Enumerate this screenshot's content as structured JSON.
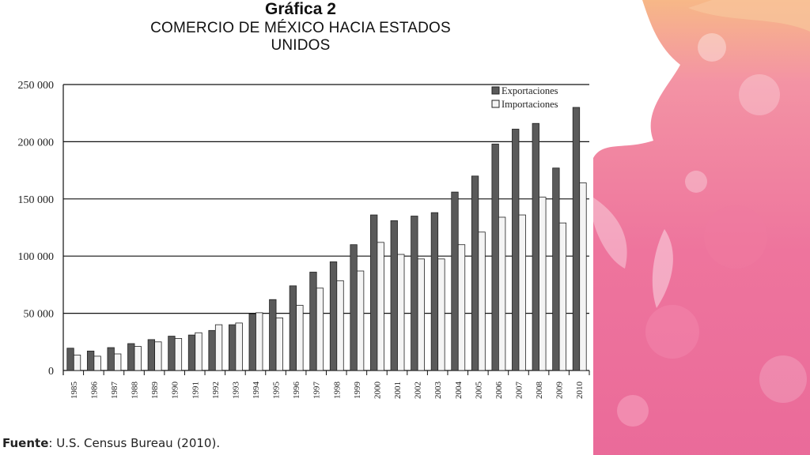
{
  "header": {
    "title": "Gráfica 2",
    "subtitle": "COMERCIO DE MÉXICO HACIA ESTADOS UNIDOS"
  },
  "footer": {
    "source_label": "Fuente",
    "source_text": ": U.S. Census Bureau (2010)."
  },
  "colors": {
    "exports": "#5a5a5a",
    "imports": "#f4f4f4",
    "decor_pink": "#ec5f8c",
    "decor_orange": "#f4a574"
  },
  "chart_data": {
    "type": "bar",
    "title": "",
    "xlabel": "",
    "ylabel": "",
    "ylim": [
      0,
      250000
    ],
    "yticks": [
      0,
      50000,
      100000,
      150000,
      200000,
      250000
    ],
    "ytick_labels": [
      "0",
      "50 000",
      "100 000",
      "150 000",
      "200 000",
      "250 000"
    ],
    "grid": "horizontal",
    "legend_position": "top-right",
    "categories": [
      "1985",
      "1986",
      "1987",
      "1988",
      "1989",
      "1990",
      "1991",
      "1992",
      "1993",
      "1994",
      "1995",
      "1996",
      "1997",
      "1998",
      "1999",
      "2000",
      "2001",
      "2002",
      "2003",
      "2004",
      "2005",
      "2006",
      "2007",
      "2008",
      "2009",
      "2010"
    ],
    "series": [
      {
        "name": "Exportaciones",
        "values": [
          19500,
          17000,
          20000,
          23500,
          27000,
          30000,
          31000,
          35000,
          40000,
          49500,
          62000,
          74000,
          86000,
          95000,
          110000,
          136000,
          131000,
          135000,
          138000,
          156000,
          170000,
          198000,
          211000,
          216000,
          177000,
          230000
        ]
      },
      {
        "name": "Importaciones",
        "values": [
          13500,
          12500,
          14500,
          21000,
          25000,
          28000,
          33000,
          40000,
          41500,
          50500,
          46000,
          57000,
          72000,
          78500,
          87000,
          112000,
          101500,
          97500,
          97500,
          110000,
          121000,
          134000,
          136000,
          151500,
          129000,
          164000
        ]
      }
    ]
  }
}
